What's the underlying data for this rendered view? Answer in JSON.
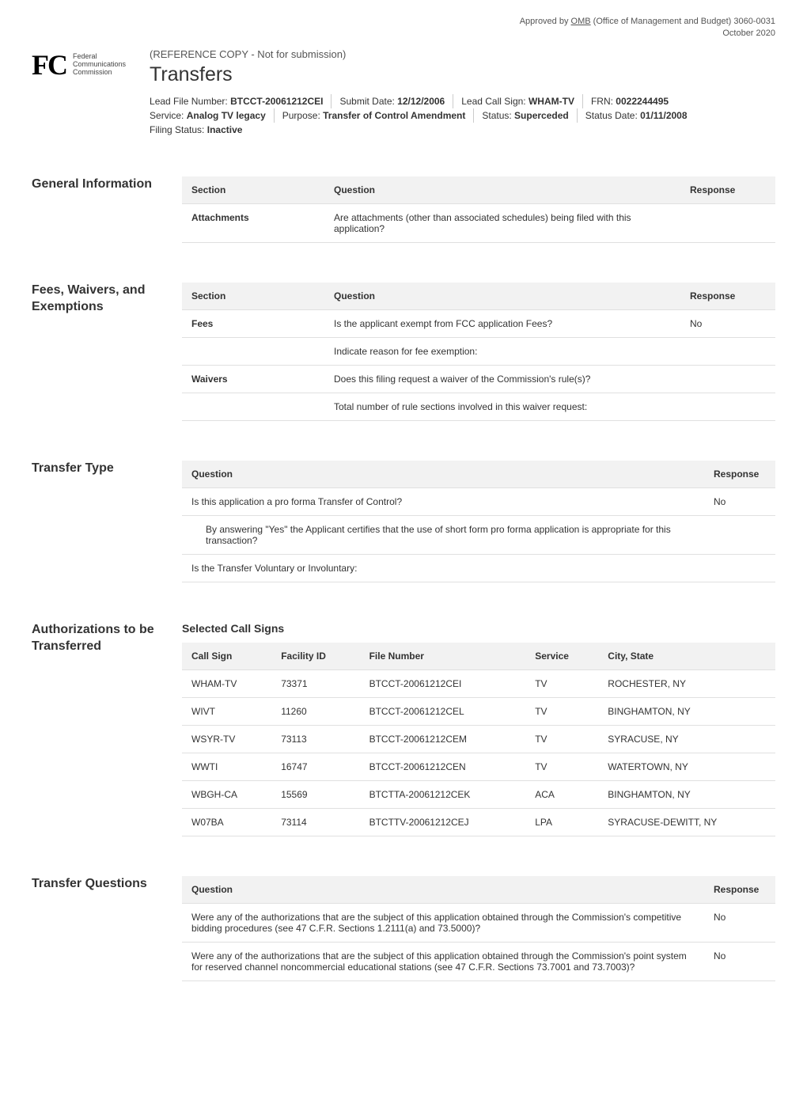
{
  "approval": {
    "line1_prefix": "Approved by ",
    "line1_omb": "OMB",
    "line1_suffix": " (Office of Management and Budget) 3060-0031",
    "line2": "October 2020"
  },
  "fcc_logo": {
    "text_line1": "Federal",
    "text_line2": "Communications",
    "text_line3": "Commission"
  },
  "ref_copy": "(REFERENCE COPY - Not for submission)",
  "page_title": "Transfers",
  "meta": {
    "lead_file_label": "Lead File Number: ",
    "lead_file_value": "BTCCT-20061212CEI",
    "submit_date_label": "Submit Date: ",
    "submit_date_value": "12/12/2006",
    "lead_call_label": "Lead Call Sign: ",
    "lead_call_value": "WHAM-TV",
    "frn_label": "FRN: ",
    "frn_value": "0022244495",
    "service_label": "Service: ",
    "service_value": "Analog TV legacy",
    "purpose_label": "Purpose: ",
    "purpose_value": "Transfer of Control Amendment",
    "status_label": "Status: ",
    "status_value": "Superceded",
    "status_date_label": "Status Date: ",
    "status_date_value": "01/11/2008",
    "filing_status_label": "Filing Status: ",
    "filing_status_value": "Inactive"
  },
  "general_info": {
    "heading": "General Information",
    "col_section": "Section",
    "col_question": "Question",
    "col_response": "Response",
    "row_section": "Attachments",
    "row_question": "Are attachments (other than associated schedules) being filed with this application?",
    "row_response": ""
  },
  "fees": {
    "heading": "Fees, Waivers, and Exemptions",
    "col_section": "Section",
    "col_question": "Question",
    "col_response": "Response",
    "r1_section": "Fees",
    "r1_question": "Is the applicant exempt from FCC application Fees?",
    "r1_response": "No",
    "r2_question": "Indicate reason for fee exemption:",
    "r2_response": "",
    "r3_section": "Waivers",
    "r3_question": "Does this filing request a waiver of the Commission's rule(s)?",
    "r3_response": "",
    "r4_question": "Total number of rule sections involved in this waiver request:",
    "r4_response": ""
  },
  "transfer_type": {
    "heading": "Transfer Type",
    "col_question": "Question",
    "col_response": "Response",
    "r1_q": "Is this application a pro forma Transfer of Control?",
    "r1_r": "No",
    "r2_q": "By answering \"Yes\" the Applicant certifies that the use of short form pro forma application is appropriate for this transaction?",
    "r2_r": "",
    "r3_q": "Is the Transfer Voluntary or Involuntary:",
    "r3_r": ""
  },
  "authorizations": {
    "heading": "Authorizations to be Transferred",
    "sub_heading": "Selected Call Signs",
    "cols": {
      "call_sign": "Call Sign",
      "facility_id": "Facility ID",
      "file_number": "File Number",
      "service": "Service",
      "city_state": "City, State"
    },
    "rows": [
      {
        "call_sign": "WHAM-TV",
        "facility_id": "73371",
        "file_number": "BTCCT-20061212CEI",
        "service": "TV",
        "city_state": "ROCHESTER, NY"
      },
      {
        "call_sign": "WIVT",
        "facility_id": "11260",
        "file_number": "BTCCT-20061212CEL",
        "service": "TV",
        "city_state": "BINGHAMTON, NY"
      },
      {
        "call_sign": "WSYR-TV",
        "facility_id": "73113",
        "file_number": "BTCCT-20061212CEM",
        "service": "TV",
        "city_state": "SYRACUSE, NY"
      },
      {
        "call_sign": "WWTI",
        "facility_id": "16747",
        "file_number": "BTCCT-20061212CEN",
        "service": "TV",
        "city_state": "WATERTOWN, NY"
      },
      {
        "call_sign": "WBGH-CA",
        "facility_id": "15569",
        "file_number": "BTCTTA-20061212CEK",
        "service": "ACA",
        "city_state": "BINGHAMTON, NY"
      },
      {
        "call_sign": "W07BA",
        "facility_id": "73114",
        "file_number": "BTCTTV-20061212CEJ",
        "service": "LPA",
        "city_state": "SYRACUSE-DEWITT, NY"
      }
    ]
  },
  "transfer_questions": {
    "heading": "Transfer Questions",
    "col_question": "Question",
    "col_response": "Response",
    "r1_q": "Were any of the authorizations that are the subject of this application obtained through the Commission's competitive bidding procedures (see 47 C.F.R. Sections 1.2111(a) and 73.5000)?",
    "r1_r": "No",
    "r2_q": "Were any of the authorizations that are the subject of this application obtained through the Commission's point system for reserved channel noncommercial educational stations (see 47 C.F.R. Sections 73.7001 and 73.7003)?",
    "r2_r": "No"
  },
  "colors": {
    "header_bg": "#f2f2f2",
    "border": "#e0e0e0",
    "text": "#333333",
    "meta_divider": "#cccccc"
  }
}
